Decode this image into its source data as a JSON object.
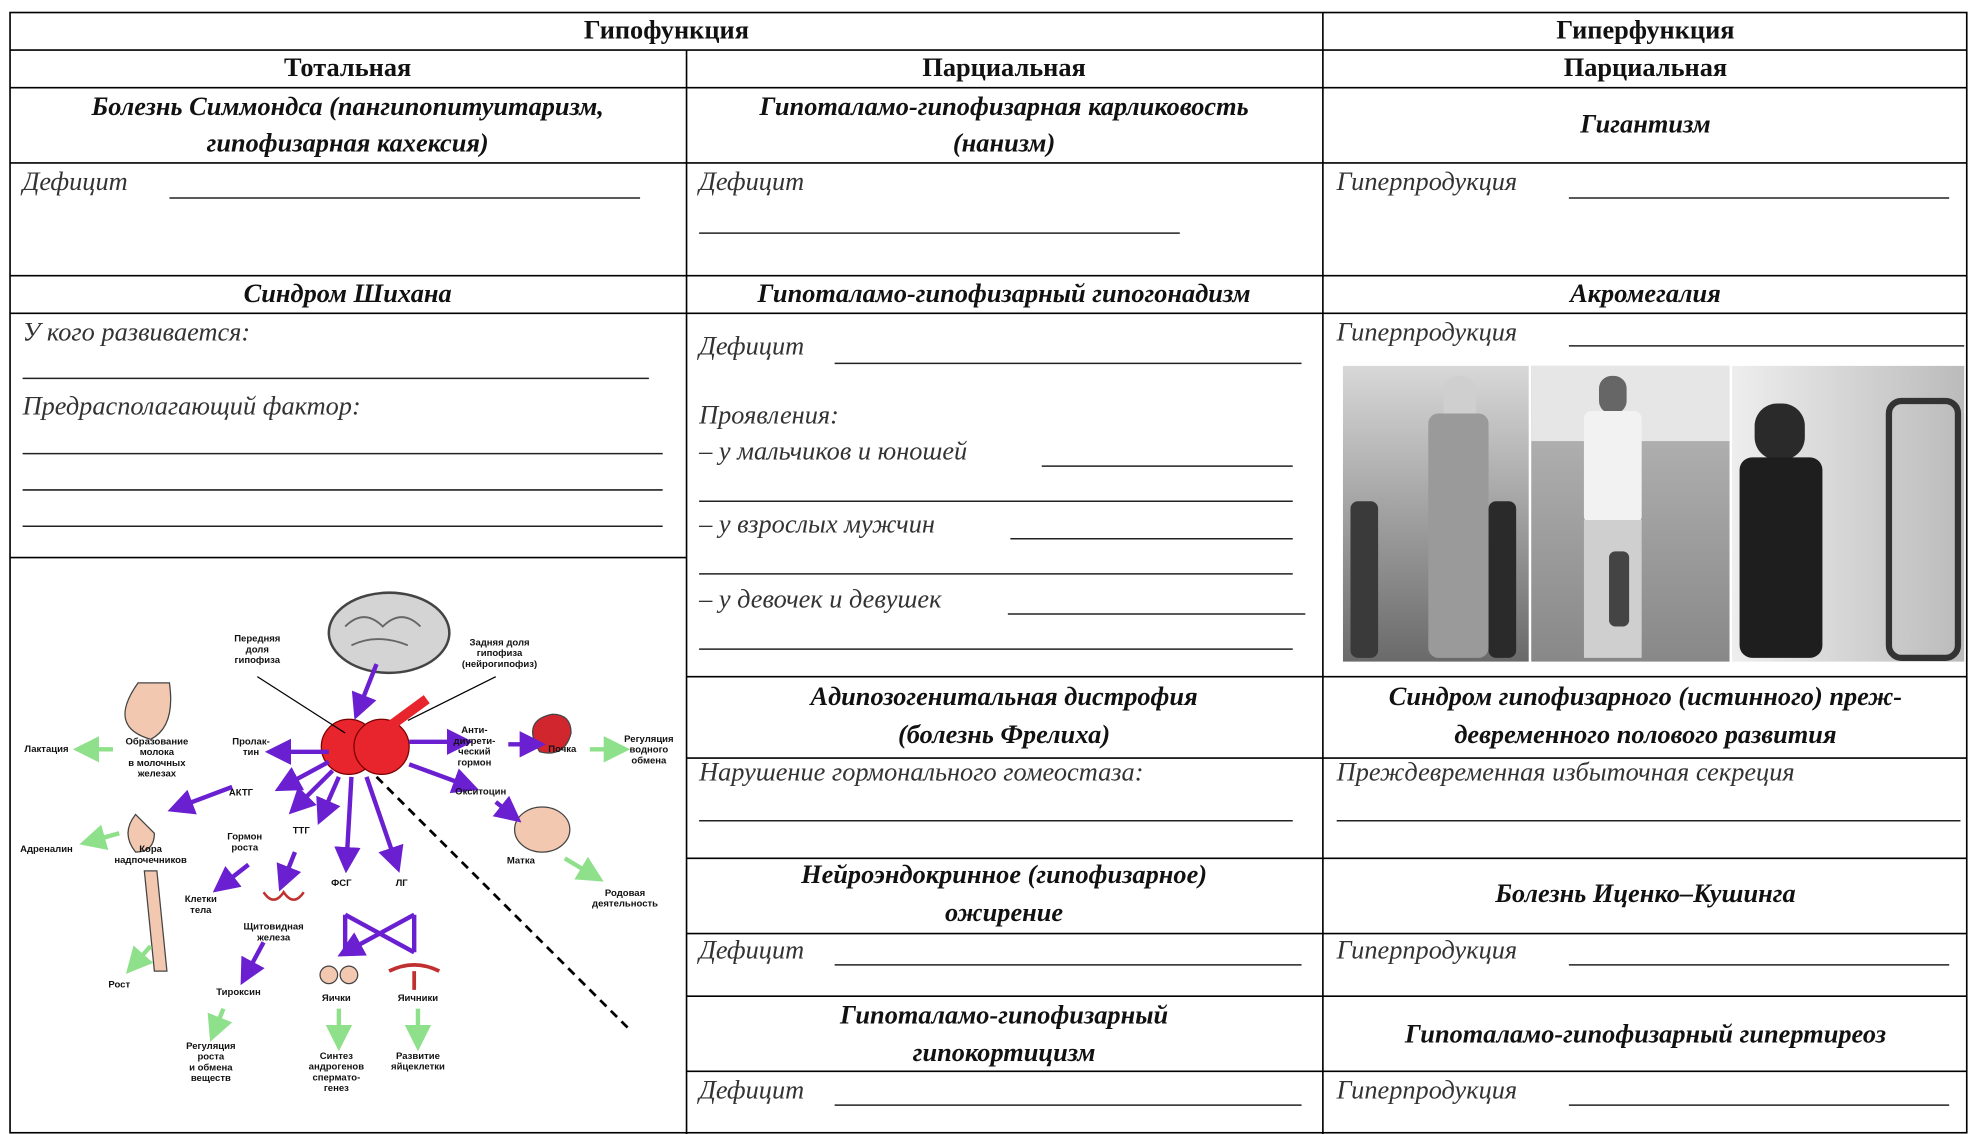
{
  "table": {
    "header": {
      "hypofunction": "Гипофункция",
      "hyperfunction": "Гиперфункция",
      "total": "Тотальная",
      "partial_hypo": "Парциальная",
      "partial_hyper": "Парциальная"
    },
    "total": [
      {
        "title": [
          "Болезнь Симмондса (пангипопитуитаризм,",
          "гипофизарная кахексия)"
        ],
        "fields": [
          "Дефицит"
        ]
      },
      {
        "title": [
          "Синдром Шихана"
        ],
        "fields": [
          "У кого развивается:",
          "Предрасполагающий фактор:"
        ]
      }
    ],
    "partial_hypo": [
      {
        "title": [
          "Гипоталамо-гипофизарная карликовость",
          "(нанизм)"
        ],
        "fields": [
          "Дефицит"
        ]
      },
      {
        "title": [
          "Гипоталамо-гипофизарный гипогонадизм"
        ],
        "fields": [
          "Дефицит",
          "Проявления:",
          "– у мальчиков и юношей",
          "– у взрослых мужчин",
          "– у девочек и девушек"
        ]
      },
      {
        "title": [
          "Адипозогенитальная дистрофия",
          "(болезнь Фрелиха)"
        ],
        "fields": [
          "Нарушение гормонального гомеостаза:"
        ]
      },
      {
        "title": [
          "Нейроэндокринное (гипофизарное)",
          "ожирение"
        ],
        "fields": [
          "Дефицит"
        ]
      },
      {
        "title": [
          "Гипоталамо-гипофизарный",
          "гипокортицизм"
        ],
        "fields": [
          "Дефицит"
        ]
      }
    ],
    "partial_hyper": [
      {
        "title": [
          "Гигантизм"
        ],
        "fields": [
          "Гиперпродукция"
        ]
      },
      {
        "title": [
          "Акромегалия"
        ],
        "fields": [
          "Гиперпродукция"
        ]
      },
      {
        "title": [
          "Синдром гипофизарного (истинного) преж-",
          "девременного полового развития"
        ],
        "fields": [
          "Преждевременная избыточная секреция"
        ]
      },
      {
        "title": [
          "Болезнь Иценко–Кушинга"
        ],
        "fields": [
          "Гиперпродукция"
        ]
      },
      {
        "title": [
          "Гипоталамо-гипофизарный гипертиреоз"
        ],
        "fields": [
          "Гиперпродукция"
        ]
      }
    ]
  },
  "diagram": {
    "labels": [
      [
        "Передняя",
        "доля",
        "гипофиза"
      ],
      [
        "Задняя доля",
        "гипофиза",
        "(нейрогипофиз)"
      ],
      [
        "Лактация"
      ],
      [
        "Образование",
        "молока",
        "в молочных",
        "железах"
      ],
      [
        "Пролак-",
        "тин"
      ],
      [
        "Анти-",
        "диурети-",
        "ческий",
        "гормон"
      ],
      [
        "Почка"
      ],
      [
        "Регуляция",
        "водного",
        "обмена"
      ],
      [
        "АКТГ"
      ],
      [
        "Окситоцин"
      ],
      [
        "Адреналин"
      ],
      [
        "Кора",
        "надпочечников"
      ],
      [
        "Гормон",
        "роста"
      ],
      [
        "ТТГ"
      ],
      [
        "Матка"
      ],
      [
        "Родовая",
        "деятельность"
      ],
      [
        "Клетки",
        "тела"
      ],
      [
        "ФСГ"
      ],
      [
        "ЛГ"
      ],
      [
        "Щитовидная",
        "железа"
      ],
      [
        "Рост"
      ],
      [
        "Тироксин"
      ],
      [
        "Яички"
      ],
      [
        "Яичники"
      ],
      [
        "Регуляция",
        "роста",
        "и обмена",
        "веществ"
      ],
      [
        "Синтез",
        "андрогенов",
        "спермато-",
        "генез"
      ],
      [
        "Развитие",
        "яйцеклетки"
      ]
    ]
  }
}
